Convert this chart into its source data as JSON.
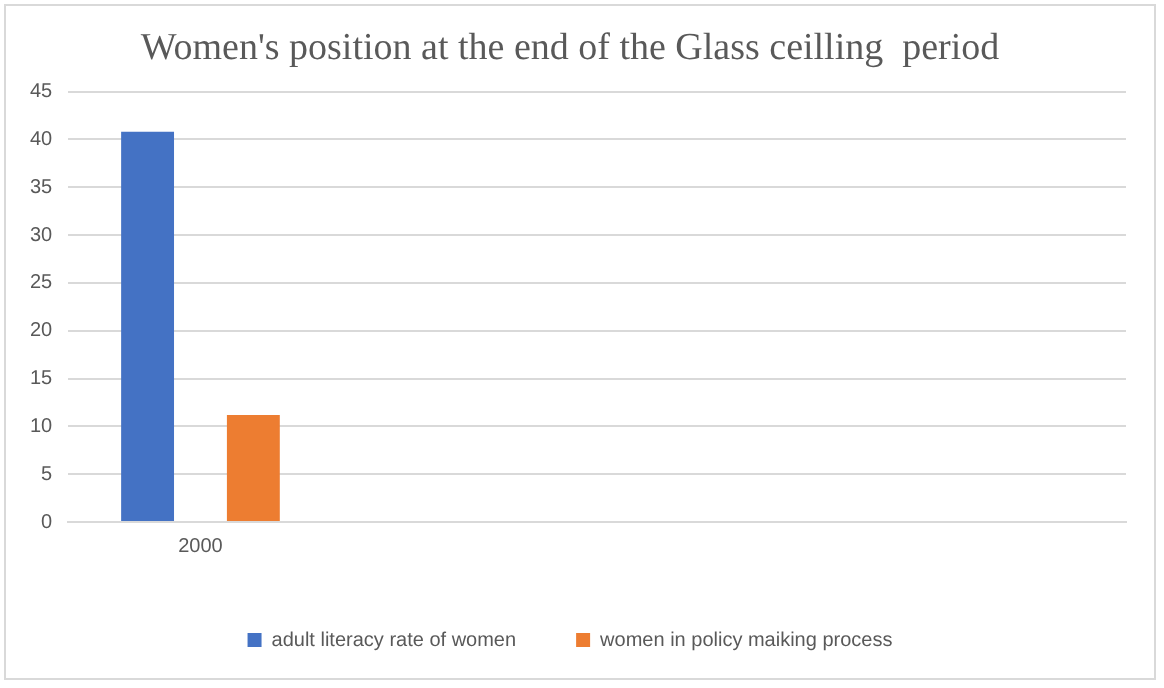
{
  "chart_data": {
    "type": "bar",
    "title": "Women's position at the end of the Glass ceilling  period",
    "categories": [
      "2000",
      null,
      null,
      null
    ],
    "series": [
      {
        "name": "adult literacy rate of women",
        "color": "#4472c4",
        "values": [
          40.8,
          null,
          null,
          null
        ]
      },
      {
        "name": "women in policy maiking process",
        "color": "#ed7d31",
        "values": [
          11.2,
          null,
          null,
          null
        ]
      }
    ],
    "ylim": [
      0,
      45
    ],
    "yticks": [
      0,
      5,
      10,
      15,
      20,
      25,
      30,
      35,
      40,
      45
    ],
    "grid": "y",
    "legend": "bottom"
  }
}
